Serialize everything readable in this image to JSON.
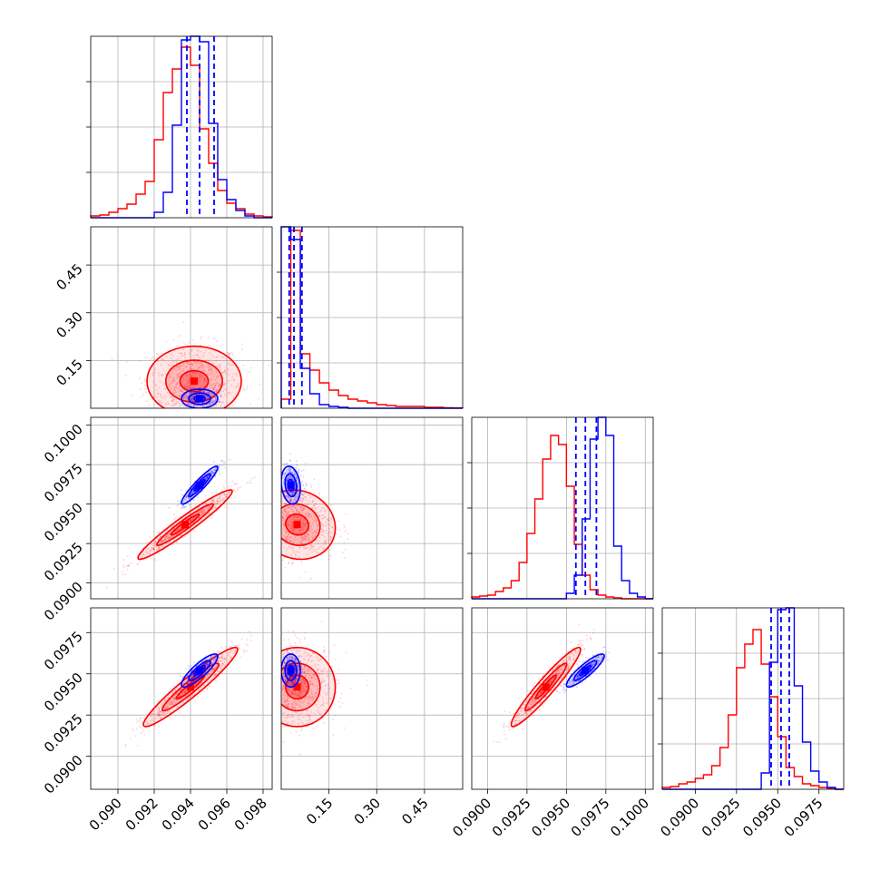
{
  "chart_data": {
    "type": "corner",
    "colors": {
      "series_a": "#ff0000",
      "series_b": "#0000ff",
      "grid": "#b0b0b0",
      "frame": "#000000"
    },
    "grid": true,
    "series": [
      {
        "key": "a",
        "color": "#ff0000"
      },
      {
        "key": "b",
        "color": "#0000ff"
      }
    ],
    "parameters": [
      {
        "range": [
          0.0885,
          0.0985
        ],
        "ticks": [
          0.09,
          0.092,
          0.094,
          0.096,
          0.098
        ],
        "tick_labels": [
          "0.090",
          "0.092",
          "0.094",
          "0.096",
          "0.098"
        ]
      },
      {
        "range": [
          0.0,
          0.57
        ],
        "ticks": [
          0.15,
          0.3,
          0.45
        ],
        "tick_labels": [
          "0.15",
          "0.30",
          "0.45"
        ]
      },
      {
        "range": [
          0.089,
          0.1005
        ],
        "ticks": [
          0.09,
          0.0925,
          0.095,
          0.0975,
          0.1
        ],
        "tick_labels": [
          "0.0900",
          "0.0925",
          "0.0950",
          "0.0975",
          "0.1000"
        ]
      },
      {
        "range": [
          0.088,
          0.099
        ],
        "ticks": [
          0.09,
          0.0925,
          0.095,
          0.0975
        ],
        "tick_labels": [
          "0.0900",
          "0.0925",
          "0.0950",
          "0.0975"
        ]
      }
    ],
    "marginals": [
      {
        "param": 0,
        "bin_edges": [
          0.0885,
          0.089,
          0.0895,
          0.09,
          0.0905,
          0.091,
          0.0915,
          0.092,
          0.0925,
          0.093,
          0.0935,
          0.094,
          0.0945,
          0.095,
          0.0955,
          0.096,
          0.0965,
          0.097,
          0.0975,
          0.098,
          0.0985
        ],
        "yticks": [
          0.25,
          0.5,
          0.75
        ],
        "a": [
          0.01,
          0.015,
          0.03,
          0.05,
          0.075,
          0.13,
          0.2,
          0.43,
          0.69,
          0.82,
          0.94,
          0.84,
          0.49,
          0.3,
          0.15,
          0.08,
          0.05,
          0.02,
          0.01,
          0.005
        ],
        "b": [
          0,
          0,
          0,
          0,
          0,
          0,
          0,
          0.03,
          0.14,
          0.51,
          0.98,
          1.0,
          0.97,
          0.52,
          0.21,
          0.1,
          0.04,
          0.01,
          0,
          0
        ],
        "quantiles_b": [
          0.0938,
          0.0945,
          0.0953
        ]
      },
      {
        "param": 1,
        "bin_edges": [
          0.0,
          0.03,
          0.06,
          0.09,
          0.12,
          0.15,
          0.18,
          0.21,
          0.24,
          0.27,
          0.3,
          0.33,
          0.36,
          0.39,
          0.42,
          0.45,
          0.48,
          0.51,
          0.54,
          0.57
        ],
        "a": [
          0.05,
          0.98,
          0.3,
          0.21,
          0.14,
          0.1,
          0.07,
          0.05,
          0.04,
          0.03,
          0.02,
          0.015,
          0.01,
          0.01,
          0.01,
          0.005,
          0.005,
          0.003,
          0.002
        ],
        "b": [
          1.0,
          0.93,
          0.22,
          0.08,
          0.02,
          0.01,
          0.005,
          0,
          0,
          0,
          0,
          0,
          0,
          0,
          0,
          0,
          0,
          0,
          0
        ],
        "quantiles_b": [
          0.025,
          0.04,
          0.065
        ]
      },
      {
        "param": 2,
        "bin_edges": [
          0.089,
          0.0895,
          0.09,
          0.0905,
          0.091,
          0.0915,
          0.092,
          0.0925,
          0.093,
          0.0935,
          0.094,
          0.0945,
          0.095,
          0.0955,
          0.096,
          0.0965,
          0.097,
          0.0975,
          0.098,
          0.0985,
          0.099,
          0.0995,
          0.1,
          0.1005
        ],
        "a": [
          0.01,
          0.015,
          0.02,
          0.04,
          0.06,
          0.1,
          0.2,
          0.36,
          0.55,
          0.77,
          0.9,
          0.85,
          0.62,
          0.3,
          0.13,
          0.05,
          0.02,
          0.01,
          0.005,
          0,
          0,
          0,
          0
        ],
        "b": [
          0,
          0,
          0,
          0,
          0,
          0,
          0,
          0,
          0,
          0,
          0,
          0,
          0.03,
          0.13,
          0.44,
          0.88,
          1.0,
          0.9,
          0.29,
          0.1,
          0.03,
          0.01,
          0
        ],
        "quantiles_b": [
          0.0956,
          0.0962,
          0.0969
        ]
      },
      {
        "param": 3,
        "bin_edges": [
          0.088,
          0.0885,
          0.089,
          0.0895,
          0.09,
          0.0905,
          0.091,
          0.0915,
          0.092,
          0.0925,
          0.093,
          0.0935,
          0.094,
          0.0945,
          0.095,
          0.0955,
          0.096,
          0.0965,
          0.097,
          0.0975,
          0.098,
          0.0985,
          0.099
        ],
        "a": [
          0.01,
          0.015,
          0.03,
          0.04,
          0.06,
          0.08,
          0.13,
          0.23,
          0.41,
          0.67,
          0.8,
          0.88,
          0.69,
          0.51,
          0.29,
          0.12,
          0.07,
          0.03,
          0.02,
          0.01,
          0.005,
          0
        ],
        "b": [
          0,
          0,
          0,
          0,
          0,
          0,
          0,
          0,
          0,
          0,
          0,
          0,
          0.09,
          0.7,
          0.99,
          1.0,
          0.57,
          0.26,
          0.1,
          0.04,
          0.01,
          0
        ],
        "quantiles_b": [
          0.0946,
          0.0952,
          0.0957
        ]
      }
    ],
    "joint": [
      {
        "row": 1,
        "col": 0,
        "a": {
          "center": [
            0.0942,
            0.085
          ],
          "sigma": [
            0.0013,
            0.055
          ],
          "corr": 0.0
        },
        "b": {
          "center": [
            0.0945,
            0.03
          ],
          "sigma": [
            0.0005,
            0.015
          ],
          "corr": 0.0
        }
      },
      {
        "row": 2,
        "col": 0,
        "a": {
          "center": [
            0.0937,
            0.0937
          ],
          "sigma": [
            0.0013,
            0.0011
          ],
          "corr": 0.96
        },
        "b": {
          "center": [
            0.0945,
            0.0962
          ],
          "sigma": [
            0.0005,
            0.0006
          ],
          "corr": 0.93
        }
      },
      {
        "row": 2,
        "col": 1,
        "a": {
          "center": [
            0.05,
            0.0937
          ],
          "sigma": [
            0.06,
            0.0011
          ],
          "corr": -0.1
        },
        "b": {
          "center": [
            0.03,
            0.0962
          ],
          "sigma": [
            0.015,
            0.0006
          ],
          "corr": -0.2
        }
      },
      {
        "row": 3,
        "col": 0,
        "a": {
          "center": [
            0.094,
            0.0942
          ],
          "sigma": [
            0.0013,
            0.0012
          ],
          "corr": 0.95
        },
        "b": {
          "center": [
            0.0945,
            0.0952
          ],
          "sigma": [
            0.0005,
            0.0005
          ],
          "corr": 0.85
        }
      },
      {
        "row": 3,
        "col": 1,
        "a": {
          "center": [
            0.05,
            0.0942
          ],
          "sigma": [
            0.06,
            0.0012
          ],
          "corr": 0.0
        },
        "b": {
          "center": [
            0.03,
            0.0952
          ],
          "sigma": [
            0.015,
            0.0005
          ],
          "corr": 0.0
        }
      },
      {
        "row": 3,
        "col": 2,
        "a": {
          "center": [
            0.0937,
            0.0942
          ],
          "sigma": [
            0.0011,
            0.0012
          ],
          "corr": 0.95
        },
        "b": {
          "center": [
            0.0962,
            0.0952
          ],
          "sigma": [
            0.0006,
            0.0005
          ],
          "corr": 0.88
        }
      }
    ]
  }
}
